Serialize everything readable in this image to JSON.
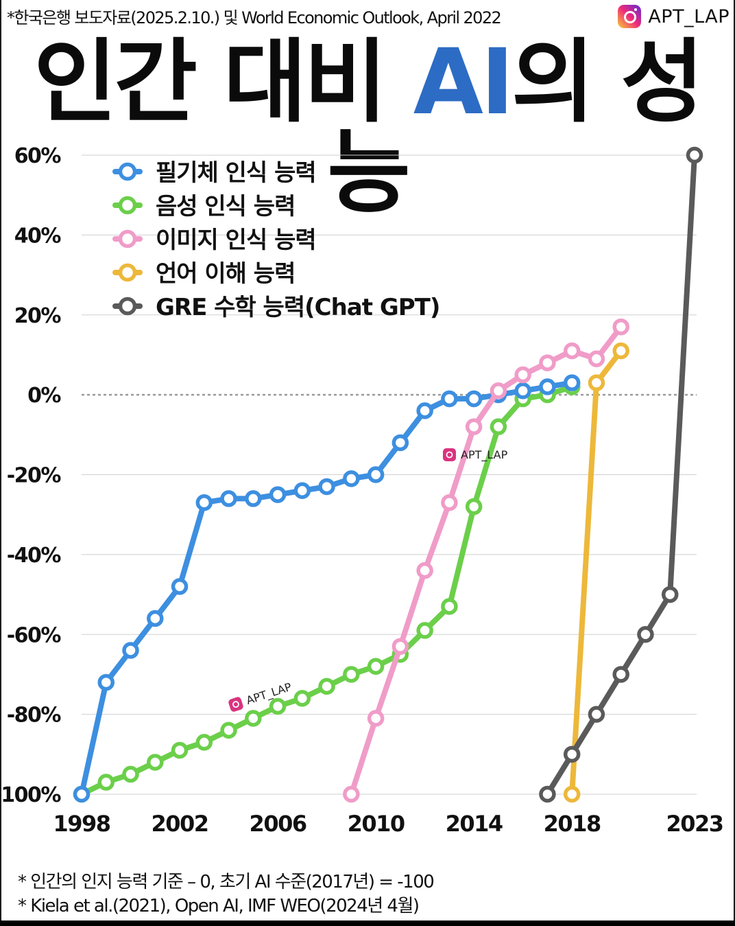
{
  "header": {
    "source": "*한국은행 보도자료(2025.2.10.) 및 World Economic Outlook, April 2022",
    "brand": "APT_LAP",
    "brand_icon": "instagram-icon",
    "title_a": "인간 대비 ",
    "title_highlight": "AI",
    "title_b": "의 성능",
    "title_highlight_color": "#2d6cc4"
  },
  "watermarks": [
    "APT_LAP",
    "APT_LAP"
  ],
  "footnotes": [
    "* 인간의 인지 능력 기준 – 0, 초기 AI 수준(2017년) = -100",
    "* Kiela et al.(2021), Open AI, IMF WEO(2024년 4월)"
  ],
  "chart_data": {
    "type": "line",
    "title": "인간 대비 AI의 성능",
    "xlabel": "",
    "ylabel": "",
    "xlim": [
      1998,
      2023
    ],
    "ylim": [
      -100,
      60
    ],
    "x_ticks": [
      "1998",
      "2002",
      "2006",
      "2010",
      "2014",
      "2018",
      "2023"
    ],
    "y_ticks": [
      "60%",
      "40%",
      "20%",
      "0%",
      "-20%",
      "-40%",
      "-60%",
      "-80%",
      "-100%"
    ],
    "reference_line": 0,
    "grid": "horizontal",
    "legend_position": "top-left",
    "series": [
      {
        "name": "필기체 인식 능력",
        "color": "#3d8fe0",
        "x": [
          1998,
          1999,
          2000,
          2001,
          2002,
          2003,
          2004,
          2005,
          2006,
          2007,
          2008,
          2009,
          2010,
          2011,
          2012,
          2013,
          2014,
          2015,
          2016,
          2017,
          2018
        ],
        "y": [
          -100,
          -72,
          -64,
          -56,
          -48,
          -27,
          -26,
          -26,
          -25,
          -24,
          -23,
          -21,
          -20,
          -12,
          -4,
          -1,
          -1,
          0,
          1,
          2,
          3
        ]
      },
      {
        "name": "음성 인식 능력",
        "color": "#6bcf4a",
        "x": [
          1998,
          1999,
          2000,
          2001,
          2002,
          2003,
          2004,
          2005,
          2006,
          2007,
          2008,
          2009,
          2010,
          2011,
          2012,
          2013,
          2014,
          2015,
          2016,
          2017,
          2018
        ],
        "y": [
          -100,
          -97,
          -95,
          -92,
          -89,
          -87,
          -84,
          -81,
          -78,
          -76,
          -73,
          -70,
          -68,
          -65,
          -59,
          -53,
          -28,
          -8,
          -1,
          0,
          2
        ]
      },
      {
        "name": "이미지 인식 능력",
        "color": "#f09cc8",
        "x": [
          2009,
          2010,
          2011,
          2012,
          2013,
          2014,
          2015,
          2016,
          2017,
          2018,
          2019,
          2020
        ],
        "y": [
          -100,
          -81,
          -63,
          -44,
          -27,
          -8,
          1,
          5,
          8,
          11,
          9,
          17
        ]
      },
      {
        "name": "언어 이해 능력",
        "color": "#edb83a",
        "x": [
          2018,
          2019,
          2020
        ],
        "y": [
          -100,
          3,
          11
        ]
      },
      {
        "name": "GRE 수학 능력(Chat GPT)",
        "color": "#5a5a5a",
        "x": [
          2017,
          2018,
          2019,
          2020,
          2021,
          2022,
          2023
        ],
        "y": [
          -100,
          -90,
          -80,
          -70,
          -60,
          -50,
          60
        ]
      }
    ]
  }
}
